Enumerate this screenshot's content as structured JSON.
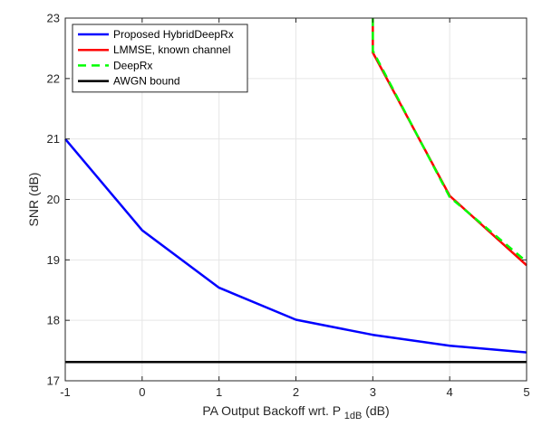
{
  "chart_data": {
    "type": "line",
    "title": "",
    "xlabel": "PA Output Backoff wrt. P",
    "xlabel_subscript": "1dB",
    "xlabel_suffix": " (dB)",
    "ylabel": "SNR (dB)",
    "xlim": [
      -1,
      5
    ],
    "ylim": [
      17,
      23
    ],
    "xticks": [
      -1,
      0,
      1,
      2,
      3,
      4,
      5
    ],
    "yticks": [
      17,
      18,
      19,
      20,
      21,
      22,
      23
    ],
    "xtick_labels": [
      "-1",
      "0",
      "1",
      "2",
      "3",
      "4",
      "5"
    ],
    "ytick_labels": [
      "17",
      "18",
      "19",
      "20",
      "21",
      "22",
      "23"
    ],
    "grid": true,
    "legend_position": "top-left",
    "series": [
      {
        "name": "Proposed HybridDeepRx",
        "color": "#0000ff",
        "dash": "solid",
        "x": [
          -1,
          0,
          1,
          2,
          3,
          4,
          5
        ],
        "y": [
          21.0,
          19.49,
          18.54,
          18.01,
          17.76,
          17.58,
          17.47
        ]
      },
      {
        "name": "LMMSE, known channel",
        "color": "#ff0000",
        "dash": "solid",
        "x": [
          3,
          3,
          4,
          5
        ],
        "y": [
          23.0,
          22.43,
          20.06,
          18.91
        ]
      },
      {
        "name": "DeepRx",
        "color": "#00ff00",
        "dash": "dashed",
        "x": [
          3,
          3,
          4,
          5
        ],
        "y": [
          23.0,
          22.46,
          20.04,
          18.97
        ]
      },
      {
        "name": "AWGN bound",
        "color": "#000000",
        "dash": "solid",
        "x": [
          -1,
          5
        ],
        "y": [
          17.31,
          17.31
        ]
      }
    ]
  }
}
